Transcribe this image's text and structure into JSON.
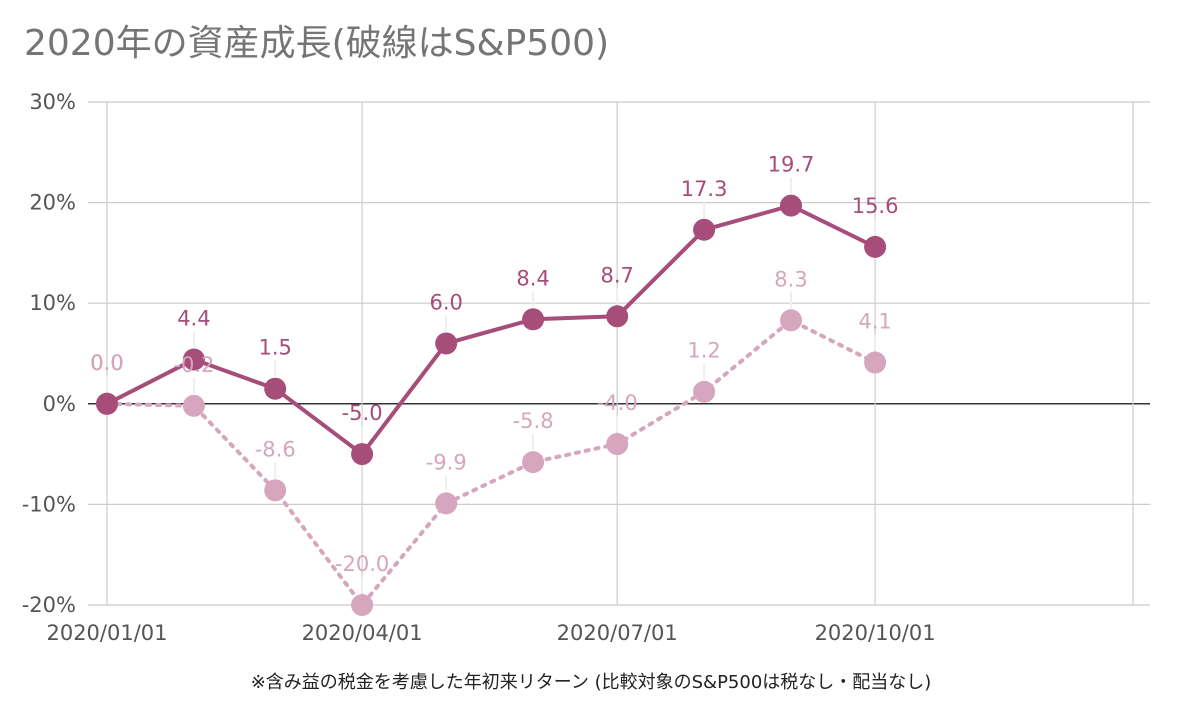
{
  "chart_data": {
    "type": "line",
    "title": "2020年の資産成長(破線はS&P500)",
    "footnote": "※含み益の税金を考慮した年初来リターン (比較対象のS&P500は税なし・配当なし)",
    "ylim": [
      -20,
      30
    ],
    "y_ticks": [
      "30%",
      "20%",
      "10%",
      "0%",
      "-10%",
      "-20%"
    ],
    "y_tick_values": [
      30,
      20,
      10,
      0,
      -10,
      -20
    ],
    "x_ticks": [
      "2020/01/01",
      "2020/04/01",
      "2020/07/01",
      "2020/10/01"
    ],
    "x_tick_values": [
      "2020-01-01",
      "2020-04-01",
      "2020-07-01",
      "2020-10-01"
    ],
    "xlim": [
      "2020-01-01",
      "2021-01-01"
    ],
    "grid": true,
    "x": [
      "2020-01-01",
      "2020-02-01",
      "2020-03-01",
      "2020-04-01",
      "2020-05-01",
      "2020-06-01",
      "2020-07-01",
      "2020-08-01",
      "2020-09-01",
      "2020-10-01"
    ],
    "series": [
      {
        "style": "solid",
        "color": "#a64d79",
        "values": [
          0.0,
          4.4,
          1.5,
          -5.0,
          6.0,
          8.4,
          8.7,
          17.3,
          19.7,
          15.6
        ],
        "labels": [
          "0.0",
          "4.4",
          "1.5",
          "-5.0",
          "6.0",
          "8.4",
          "8.7",
          "17.3",
          "19.7",
          "15.6"
        ]
      },
      {
        "style": "dotted",
        "color": "#d5a6bd",
        "values": [
          0.0,
          -0.2,
          -8.6,
          -20.0,
          -9.9,
          -5.8,
          -4.0,
          1.2,
          8.3,
          4.1
        ],
        "labels": [
          "0.0",
          "-0.2",
          "-8.6",
          "-20.0",
          "-9.9",
          "-5.8",
          "-4.0",
          "1.2",
          "8.3",
          "4.1"
        ]
      }
    ]
  }
}
